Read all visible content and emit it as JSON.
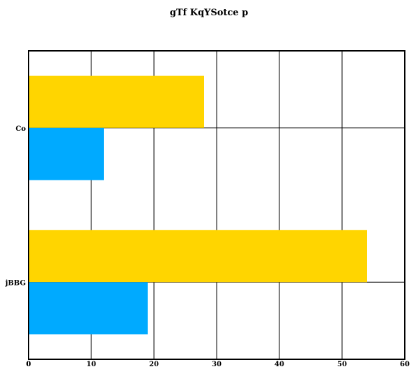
{
  "chart_data": {
    "type": "bar",
    "orientation": "horizontal",
    "title": "gTf KqYSotce p",
    "xlabel": "",
    "ylabel": "",
    "categories": [
      "Co",
      "jBBG"
    ],
    "series": [
      {
        "values": [
          28,
          54
        ],
        "color": "#FFD500"
      },
      {
        "values": [
          12,
          19
        ],
        "color": "#00AAFF"
      }
    ],
    "xlim": [
      0,
      60
    ],
    "x_ticks": [
      0,
      10,
      20,
      30,
      40,
      50,
      60
    ],
    "grid": true,
    "legend": "none"
  }
}
